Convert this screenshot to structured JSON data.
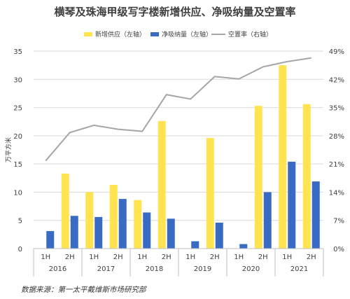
{
  "title": "横琴及珠海甲级写字楼新增供应、净吸纳量及空置率",
  "footer": "数据来源：第一太平戴维斯市场研究部",
  "chart_data": {
    "type": "bar",
    "title": "横琴及珠海甲级写字楼新增供应、净吸纳量及空置率",
    "ylabel": "万平方米",
    "ylim": [
      0,
      35
    ],
    "yticks": [
      0,
      5,
      10,
      15,
      20,
      25,
      30,
      35
    ],
    "y2lim": [
      0,
      49
    ],
    "y2ticks": [
      "0%",
      "7%",
      "14%",
      "21%",
      "28%",
      "35%",
      "42%",
      "49%"
    ],
    "categories": [
      "1H",
      "2H",
      "1H",
      "2H",
      "1H",
      "2H",
      "1H",
      "2H",
      "1H",
      "2H",
      "1H",
      "2H"
    ],
    "groups": [
      "2016",
      "2017",
      "2018",
      "2019",
      "2020",
      "2021"
    ],
    "series": [
      {
        "name": "新增供应（左轴）",
        "type": "bar",
        "axis": "left",
        "color": "#FFE34F",
        "values": [
          0,
          13.3,
          10,
          11.3,
          8.6,
          22.6,
          0,
          19.6,
          0,
          25.3,
          32.5,
          25.6
        ]
      },
      {
        "name": "净吸纳量（左轴）",
        "type": "bar",
        "axis": "left",
        "color": "#3A6BC3",
        "values": [
          3.1,
          5.8,
          5.6,
          8.8,
          6.4,
          5.3,
          1.3,
          4.6,
          0.8,
          10,
          15.4,
          11.9
        ]
      },
      {
        "name": "空置率（右轴）",
        "type": "line",
        "axis": "right",
        "color": "#A6A6A6",
        "values": [
          21.8,
          28.8,
          30.6,
          29.6,
          29.1,
          38.2,
          37.1,
          42.7,
          42.1,
          45.1,
          46.4,
          47.3
        ]
      }
    ],
    "legend_position": "top",
    "grid": true
  }
}
